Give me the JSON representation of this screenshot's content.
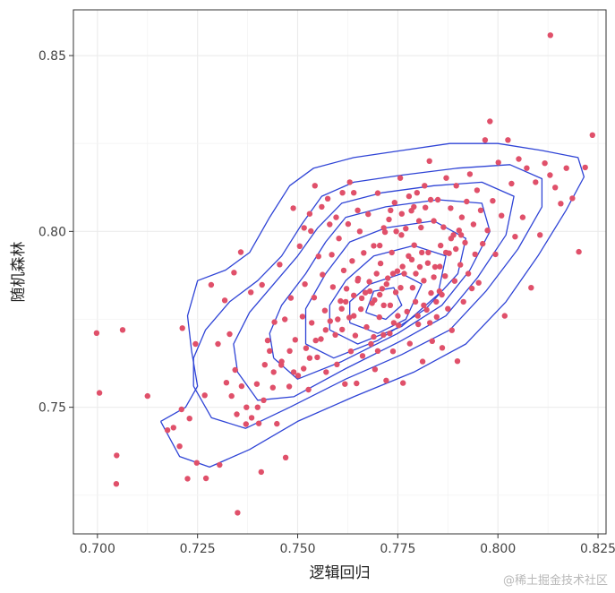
{
  "chart_data": {
    "type": "scatter",
    "xlabel": "逻辑回归",
    "ylabel": "随机森林",
    "xlim": [
      0.694,
      0.827
    ],
    "ylim": [
      0.714,
      0.863
    ],
    "x_ticks": [
      0.7,
      0.725,
      0.75,
      0.775,
      0.8,
      0.825
    ],
    "x_tick_labels": [
      "0.700",
      "0.725",
      "0.750",
      "0.775",
      "0.800",
      "0.825"
    ],
    "y_ticks": [
      0.75,
      0.8,
      0.85
    ],
    "y_tick_labels": [
      "0.75",
      "0.80",
      "0.85"
    ],
    "grid": true,
    "point_color": "#e0506a",
    "contour_color": "#2f44d6",
    "points": [
      [
        0.6998,
        0.7711
      ],
      [
        0.7005,
        0.7541
      ],
      [
        0.7048,
        0.7363
      ],
      [
        0.7047,
        0.7282
      ],
      [
        0.7063,
        0.772
      ],
      [
        0.7125,
        0.7532
      ],
      [
        0.7175,
        0.7435
      ],
      [
        0.719,
        0.7442
      ],
      [
        0.721,
        0.7494
      ],
      [
        0.7205,
        0.7389
      ],
      [
        0.7212,
        0.7725
      ],
      [
        0.7225,
        0.7297
      ],
      [
        0.723,
        0.7468
      ],
      [
        0.7245,
        0.768
      ],
      [
        0.7248,
        0.7342
      ],
      [
        0.7268,
        0.7534
      ],
      [
        0.7271,
        0.7298
      ],
      [
        0.7284,
        0.7848
      ],
      [
        0.7301,
        0.768
      ],
      [
        0.7305,
        0.7336
      ],
      [
        0.7318,
        0.7804
      ],
      [
        0.733,
        0.7708
      ],
      [
        0.7335,
        0.7532
      ],
      [
        0.7341,
        0.7883
      ],
      [
        0.7344,
        0.7606
      ],
      [
        0.735,
        0.72
      ],
      [
        0.7358,
        0.7941
      ],
      [
        0.7371,
        0.7452
      ],
      [
        0.7383,
        0.7827
      ],
      [
        0.7398,
        0.7566
      ],
      [
        0.7403,
        0.7454
      ],
      [
        0.7409,
        0.7316
      ],
      [
        0.7411,
        0.7848
      ],
      [
        0.7418,
        0.7621
      ],
      [
        0.7425,
        0.769
      ],
      [
        0.7438,
        0.7556
      ],
      [
        0.7442,
        0.7742
      ],
      [
        0.7448,
        0.7453
      ],
      [
        0.7455,
        0.7906
      ],
      [
        0.7459,
        0.762
      ],
      [
        0.7468,
        0.775
      ],
      [
        0.747,
        0.7357
      ],
      [
        0.7479,
        0.7559
      ],
      [
        0.7483,
        0.7811
      ],
      [
        0.7489,
        0.8066
      ],
      [
        0.7494,
        0.7692
      ],
      [
        0.7501,
        0.759
      ],
      [
        0.7505,
        0.7958
      ],
      [
        0.7512,
        0.7758
      ],
      [
        0.7518,
        0.785
      ],
      [
        0.7521,
        0.7668
      ],
      [
        0.7527,
        0.755
      ],
      [
        0.7533,
        0.8001
      ],
      [
        0.7535,
        0.774
      ],
      [
        0.7541,
        0.7812
      ],
      [
        0.7549,
        0.7642
      ],
      [
        0.7552,
        0.7929
      ],
      [
        0.7558,
        0.7694
      ],
      [
        0.7562,
        0.7877
      ],
      [
        0.7568,
        0.7775
      ],
      [
        0.7571,
        0.76
      ],
      [
        0.7575,
        0.8093
      ],
      [
        0.7581,
        0.7745
      ],
      [
        0.7585,
        0.7934
      ],
      [
        0.7588,
        0.7842
      ],
      [
        0.7594,
        0.7706
      ],
      [
        0.7598,
        0.7622
      ],
      [
        0.7603,
        0.798
      ],
      [
        0.7607,
        0.7802
      ],
      [
        0.7611,
        0.7721
      ],
      [
        0.7615,
        0.7889
      ],
      [
        0.7618,
        0.7566
      ],
      [
        0.7622,
        0.7837
      ],
      [
        0.7626,
        0.8021
      ],
      [
        0.7629,
        0.7755
      ],
      [
        0.7633,
        0.7659
      ],
      [
        0.7636,
        0.7916
      ],
      [
        0.764,
        0.7818
      ],
      [
        0.7644,
        0.7704
      ],
      [
        0.7647,
        0.7568
      ],
      [
        0.7651,
        0.7866
      ],
      [
        0.7655,
        0.8
      ],
      [
        0.7658,
        0.7779
      ],
      [
        0.7662,
        0.7646
      ],
      [
        0.7665,
        0.7939
      ],
      [
        0.7669,
        0.7826
      ],
      [
        0.7672,
        0.7728
      ],
      [
        0.7676,
        0.8049
      ],
      [
        0.7679,
        0.7857
      ],
      [
        0.7683,
        0.768
      ],
      [
        0.7686,
        0.7796
      ],
      [
        0.769,
        0.7959
      ],
      [
        0.7693,
        0.7608
      ],
      [
        0.7697,
        0.788
      ],
      [
        0.77,
        0.8109
      ],
      [
        0.7704,
        0.7756
      ],
      [
        0.7707,
        0.7909
      ],
      [
        0.7711,
        0.7837
      ],
      [
        0.7714,
        0.7706
      ],
      [
        0.7718,
        0.7998
      ],
      [
        0.7721,
        0.7576
      ],
      [
        0.7725,
        0.7867
      ],
      [
        0.7728,
        0.8034
      ],
      [
        0.7731,
        0.779
      ],
      [
        0.7735,
        0.794
      ],
      [
        0.7738,
        0.7659
      ],
      [
        0.7742,
        0.8082
      ],
      [
        0.7745,
        0.7827
      ],
      [
        0.7749,
        0.7887
      ],
      [
        0.7752,
        0.7733
      ],
      [
        0.7756,
        0.8152
      ],
      [
        0.7759,
        0.799
      ],
      [
        0.7763,
        0.7569
      ],
      [
        0.7766,
        0.788
      ],
      [
        0.777,
        0.8008
      ],
      [
        0.7773,
        0.7772
      ],
      [
        0.7777,
        0.793
      ],
      [
        0.778,
        0.7681
      ],
      [
        0.7784,
        0.8059
      ],
      [
        0.7787,
        0.784
      ],
      [
        0.7791,
        0.7961
      ],
      [
        0.7794,
        0.78
      ],
      [
        0.7798,
        0.811
      ],
      [
        0.7801,
        0.7736
      ],
      [
        0.7805,
        0.7899
      ],
      [
        0.7808,
        0.8011
      ],
      [
        0.7812,
        0.763
      ],
      [
        0.7815,
        0.786
      ],
      [
        0.7819,
        0.8068
      ],
      [
        0.7822,
        0.7777
      ],
      [
        0.7826,
        0.794
      ],
      [
        0.7829,
        0.82
      ],
      [
        0.7833,
        0.7825
      ],
      [
        0.7836,
        0.7688
      ],
      [
        0.784,
        0.803
      ],
      [
        0.7843,
        0.7899
      ],
      [
        0.7847,
        0.7757
      ],
      [
        0.785,
        0.809
      ],
      [
        0.7854,
        0.783
      ],
      [
        0.7857,
        0.796
      ],
      [
        0.7861,
        0.7669
      ],
      [
        0.7864,
        0.8012
      ],
      [
        0.7868,
        0.7873
      ],
      [
        0.7871,
        0.8152
      ],
      [
        0.7875,
        0.778
      ],
      [
        0.7878,
        0.7938
      ],
      [
        0.7882,
        0.8066
      ],
      [
        0.7885,
        0.7719
      ],
      [
        0.7889,
        0.799
      ],
      [
        0.7892,
        0.7859
      ],
      [
        0.7896,
        0.813
      ],
      [
        0.7899,
        0.7631
      ],
      [
        0.7903,
        0.8003
      ],
      [
        0.7906,
        0.7905
      ],
      [
        0.791,
        0.804
      ],
      [
        0.7914,
        0.78
      ],
      [
        0.7918,
        0.7968
      ],
      [
        0.7922,
        0.8085
      ],
      [
        0.7926,
        0.788
      ],
      [
        0.793,
        0.8163
      ],
      [
        0.7935,
        0.7838
      ],
      [
        0.7939,
        0.802
      ],
      [
        0.7943,
        0.7935
      ],
      [
        0.7948,
        0.8117
      ],
      [
        0.7952,
        0.7854
      ],
      [
        0.7957,
        0.806
      ],
      [
        0.7962,
        0.7965
      ],
      [
        0.7968,
        0.826
      ],
      [
        0.7974,
        0.8003
      ],
      [
        0.798,
        0.8313
      ],
      [
        0.7987,
        0.8087
      ],
      [
        0.7994,
        0.7935
      ],
      [
        0.8001,
        0.8196
      ],
      [
        0.8009,
        0.8045
      ],
      [
        0.8017,
        0.776
      ],
      [
        0.8025,
        0.826
      ],
      [
        0.8034,
        0.8136
      ],
      [
        0.8043,
        0.7985
      ],
      [
        0.8052,
        0.8206
      ],
      [
        0.8062,
        0.804
      ],
      [
        0.8072,
        0.818
      ],
      [
        0.8083,
        0.784
      ],
      [
        0.8094,
        0.814
      ],
      [
        0.8105,
        0.799
      ],
      [
        0.8117,
        0.8194
      ],
      [
        0.813,
        0.816
      ],
      [
        0.8131,
        0.8558
      ],
      [
        0.8143,
        0.8125
      ],
      [
        0.8157,
        0.8079
      ],
      [
        0.8171,
        0.818
      ],
      [
        0.8186,
        0.8094
      ],
      [
        0.8202,
        0.7942
      ],
      [
        0.8218,
        0.8182
      ],
      [
        0.8236,
        0.8274
      ],
      [
        0.768,
        0.783
      ],
      [
        0.7692,
        0.7805
      ],
      [
        0.7705,
        0.782
      ],
      [
        0.7715,
        0.779
      ],
      [
        0.766,
        0.781
      ],
      [
        0.765,
        0.786
      ],
      [
        0.7722,
        0.785
      ],
      [
        0.7738,
        0.788
      ],
      [
        0.7757,
        0.784
      ],
      [
        0.7762,
        0.79
      ],
      [
        0.7785,
        0.792
      ],
      [
        0.7795,
        0.788
      ],
      [
        0.781,
        0.794
      ],
      [
        0.7825,
        0.791
      ],
      [
        0.784,
        0.787
      ],
      [
        0.7855,
        0.79
      ],
      [
        0.787,
        0.794
      ],
      [
        0.7883,
        0.798
      ],
      [
        0.7895,
        0.795
      ],
      [
        0.7908,
        0.799
      ],
      [
        0.76,
        0.775
      ],
      [
        0.761,
        0.778
      ],
      [
        0.762,
        0.78
      ],
      [
        0.764,
        0.776
      ],
      [
        0.757,
        0.772
      ],
      [
        0.7545,
        0.769
      ],
      [
        0.753,
        0.764
      ],
      [
        0.7515,
        0.761
      ],
      [
        0.749,
        0.76
      ],
      [
        0.748,
        0.766
      ],
      [
        0.746,
        0.763
      ],
      [
        0.744,
        0.76
      ],
      [
        0.743,
        0.766
      ],
      [
        0.7415,
        0.752
      ],
      [
        0.74,
        0.75
      ],
      [
        0.7385,
        0.747
      ],
      [
        0.7372,
        0.75
      ],
      [
        0.736,
        0.756
      ],
      [
        0.7348,
        0.748
      ],
      [
        0.7322,
        0.757
      ],
      [
        0.769,
        0.77
      ],
      [
        0.77,
        0.766
      ],
      [
        0.773,
        0.771
      ],
      [
        0.774,
        0.774
      ],
      [
        0.775,
        0.776
      ],
      [
        0.78,
        0.776
      ],
      [
        0.7815,
        0.779
      ],
      [
        0.783,
        0.774
      ],
      [
        0.7846,
        0.78
      ],
      [
        0.786,
        0.782
      ],
      [
        0.7705,
        0.796
      ],
      [
        0.7715,
        0.801
      ],
      [
        0.7732,
        0.806
      ],
      [
        0.7746,
        0.8
      ],
      [
        0.776,
        0.805
      ],
      [
        0.7778,
        0.81
      ],
      [
        0.779,
        0.807
      ],
      [
        0.7803,
        0.803
      ],
      [
        0.7817,
        0.813
      ],
      [
        0.7832,
        0.809
      ],
      [
        0.765,
        0.806
      ],
      [
        0.764,
        0.811
      ],
      [
        0.763,
        0.814
      ],
      [
        0.7612,
        0.811
      ],
      [
        0.7596,
        0.804
      ],
      [
        0.758,
        0.802
      ],
      [
        0.756,
        0.807
      ],
      [
        0.7543,
        0.813
      ],
      [
        0.753,
        0.805
      ],
      [
        0.7516,
        0.801
      ]
    ],
    "contours": [
      [
        [
          0.7158,
          0.746
        ],
        [
          0.7205,
          0.736
        ],
        [
          0.728,
          0.733
        ],
        [
          0.738,
          0.738
        ],
        [
          0.75,
          0.746
        ],
        [
          0.764,
          0.753
        ],
        [
          0.779,
          0.76
        ],
        [
          0.792,
          0.768
        ],
        [
          0.802,
          0.78
        ],
        [
          0.81,
          0.793
        ],
        [
          0.817,
          0.806
        ],
        [
          0.8215,
          0.8155
        ],
        [
          0.82,
          0.821
        ],
        [
          0.811,
          0.823
        ],
        [
          0.8,
          0.825
        ],
        [
          0.788,
          0.825
        ],
        [
          0.776,
          0.823
        ],
        [
          0.764,
          0.821
        ],
        [
          0.754,
          0.818
        ],
        [
          0.748,
          0.813
        ],
        [
          0.743,
          0.804
        ],
        [
          0.738,
          0.794
        ],
        [
          0.732,
          0.789
        ],
        [
          0.725,
          0.786
        ],
        [
          0.7225,
          0.776
        ],
        [
          0.7235,
          0.766
        ],
        [
          0.725,
          0.756
        ],
        [
          0.722,
          0.75
        ],
        [
          0.7158,
          0.746
        ]
      ],
      [
        [
          0.724,
          0.756
        ],
        [
          0.7285,
          0.747
        ],
        [
          0.737,
          0.744
        ],
        [
          0.748,
          0.75
        ],
        [
          0.762,
          0.758
        ],
        [
          0.776,
          0.765
        ],
        [
          0.788,
          0.772
        ],
        [
          0.797,
          0.783
        ],
        [
          0.805,
          0.795
        ],
        [
          0.811,
          0.807
        ],
        [
          0.811,
          0.815
        ],
        [
          0.803,
          0.819
        ],
        [
          0.79,
          0.818
        ],
        [
          0.776,
          0.816
        ],
        [
          0.764,
          0.814
        ],
        [
          0.756,
          0.81
        ],
        [
          0.751,
          0.802
        ],
        [
          0.746,
          0.793
        ],
        [
          0.74,
          0.786
        ],
        [
          0.733,
          0.78
        ],
        [
          0.727,
          0.772
        ],
        [
          0.724,
          0.764
        ],
        [
          0.724,
          0.756
        ]
      ],
      [
        [
          0.735,
          0.76
        ],
        [
          0.74,
          0.752
        ],
        [
          0.749,
          0.753
        ],
        [
          0.762,
          0.761
        ],
        [
          0.776,
          0.769
        ],
        [
          0.787,
          0.776
        ],
        [
          0.795,
          0.787
        ],
        [
          0.802,
          0.799
        ],
        [
          0.804,
          0.81
        ],
        [
          0.796,
          0.814
        ],
        [
          0.784,
          0.813
        ],
        [
          0.771,
          0.811
        ],
        [
          0.761,
          0.808
        ],
        [
          0.755,
          0.801
        ],
        [
          0.75,
          0.793
        ],
        [
          0.744,
          0.785
        ],
        [
          0.738,
          0.777
        ],
        [
          0.734,
          0.768
        ],
        [
          0.735,
          0.76
        ]
      ],
      [
        [
          0.744,
          0.764
        ],
        [
          0.75,
          0.758
        ],
        [
          0.761,
          0.763
        ],
        [
          0.775,
          0.771
        ],
        [
          0.786,
          0.779
        ],
        [
          0.793,
          0.789
        ],
        [
          0.798,
          0.8
        ],
        [
          0.796,
          0.808
        ],
        [
          0.785,
          0.809
        ],
        [
          0.772,
          0.807
        ],
        [
          0.762,
          0.804
        ],
        [
          0.757,
          0.797
        ],
        [
          0.752,
          0.788
        ],
        [
          0.746,
          0.779
        ],
        [
          0.743,
          0.771
        ],
        [
          0.744,
          0.764
        ]
      ],
      [
        [
          0.752,
          0.768
        ],
        [
          0.759,
          0.764
        ],
        [
          0.77,
          0.769
        ],
        [
          0.782,
          0.778
        ],
        [
          0.79,
          0.788
        ],
        [
          0.792,
          0.798
        ],
        [
          0.784,
          0.803
        ],
        [
          0.772,
          0.801
        ],
        [
          0.763,
          0.797
        ],
        [
          0.757,
          0.788
        ],
        [
          0.752,
          0.778
        ],
        [
          0.752,
          0.768
        ]
      ],
      [
        [
          0.758,
          0.772
        ],
        [
          0.765,
          0.768
        ],
        [
          0.776,
          0.773
        ],
        [
          0.785,
          0.782
        ],
        [
          0.787,
          0.793
        ],
        [
          0.779,
          0.796
        ],
        [
          0.769,
          0.793
        ],
        [
          0.762,
          0.786
        ],
        [
          0.758,
          0.779
        ],
        [
          0.758,
          0.772
        ]
      ],
      [
        [
          0.763,
          0.774
        ],
        [
          0.77,
          0.771
        ],
        [
          0.777,
          0.775
        ],
        [
          0.781,
          0.785
        ],
        [
          0.776,
          0.788
        ],
        [
          0.768,
          0.785
        ],
        [
          0.763,
          0.78
        ],
        [
          0.763,
          0.774
        ]
      ],
      [
        [
          0.767,
          0.777
        ],
        [
          0.772,
          0.775
        ],
        [
          0.776,
          0.779
        ],
        [
          0.774,
          0.784
        ],
        [
          0.769,
          0.783
        ],
        [
          0.767,
          0.777
        ]
      ]
    ]
  },
  "watermark": "@稀土掘金技术社区"
}
